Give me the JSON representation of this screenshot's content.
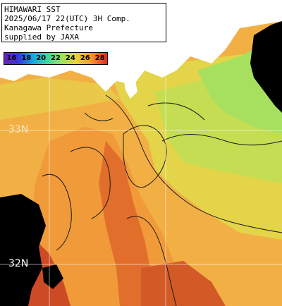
{
  "title": {
    "line1": "HIMAWARI SST",
    "line2": "2025/06/17 22(UTC) 3H Comp.",
    "line3": "Kanagawa Prefecture",
    "line4": "supplied by JAXA"
  },
  "legend": {
    "values": [
      "16",
      "18",
      "20",
      "22",
      "24",
      "26",
      "28"
    ]
  },
  "grid": {
    "lat_labels": [
      "33N",
      "32N"
    ]
  },
  "colors": {
    "land": "#ffffff",
    "cloud": "#000000",
    "sst_22": "#b8e04e",
    "sst_23": "#e3d44a",
    "sst_24": "#f3b446",
    "sst_25": "#f09a3a",
    "sst_26": "#e26e2c",
    "sst_27": "#cc4a24"
  }
}
